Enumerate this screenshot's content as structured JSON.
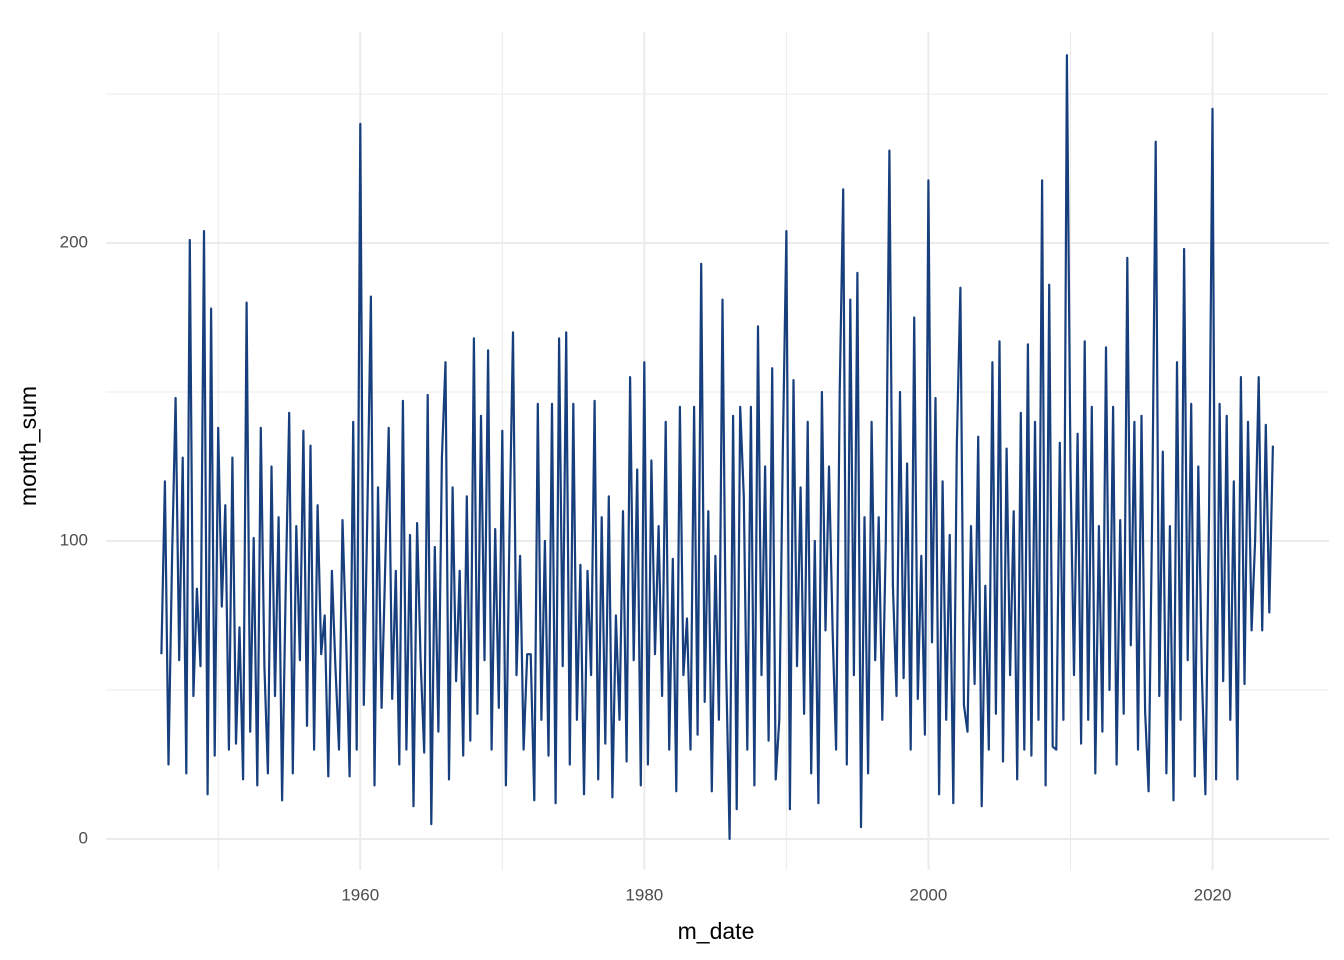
{
  "chart_data": {
    "type": "line",
    "x_label": "m_date",
    "y_label": "month_sum",
    "xlim": [
      1942.1,
      2028.2
    ],
    "xticks": [
      1960,
      1980,
      2000,
      2020
    ],
    "x_minor_grid": [
      1950,
      1970,
      1990,
      2010
    ],
    "ylim": [
      -10.4,
      270.8
    ],
    "yticks": [
      0,
      100,
      200
    ],
    "y_minor_grid": [
      50,
      150,
      250
    ],
    "grid": true,
    "series": [
      {
        "color": "#173e7d",
        "x": [
          1946,
          1946.25,
          1946.5,
          1946.75,
          1947,
          1947.25,
          1947.5,
          1947.75,
          1948,
          1948.25,
          1948.5,
          1948.75,
          1949,
          1949.25,
          1949.5,
          1949.75,
          1950,
          1950.25,
          1950.5,
          1950.75,
          1951,
          1951.25,
          1951.5,
          1951.75,
          1952,
          1952.25,
          1952.5,
          1952.75,
          1953,
          1953.25,
          1953.5,
          1953.75,
          1954,
          1954.25,
          1954.5,
          1954.75,
          1955,
          1955.25,
          1955.5,
          1955.75,
          1956,
          1956.25,
          1956.5,
          1956.75,
          1957,
          1957.25,
          1957.5,
          1957.75,
          1958,
          1958.25,
          1958.5,
          1958.75,
          1959,
          1959.25,
          1959.5,
          1959.75,
          1960,
          1960.25,
          1960.5,
          1960.75,
          1961,
          1961.25,
          1961.5,
          1961.75,
          1962,
          1962.25,
          1962.5,
          1962.75,
          1963,
          1963.25,
          1963.5,
          1963.75,
          1964,
          1964.25,
          1964.5,
          1964.75,
          1965,
          1965.25,
          1965.5,
          1965.75,
          1966,
          1966.25,
          1966.5,
          1966.75,
          1967,
          1967.25,
          1967.5,
          1967.75,
          1968,
          1968.25,
          1968.5,
          1968.75,
          1969,
          1969.25,
          1969.5,
          1969.75,
          1970,
          1970.25,
          1970.5,
          1970.75,
          1971,
          1971.25,
          1971.5,
          1971.75,
          1972,
          1972.25,
          1972.5,
          1972.75,
          1973,
          1973.25,
          1973.5,
          1973.75,
          1974,
          1974.25,
          1974.5,
          1974.75,
          1975,
          1975.25,
          1975.5,
          1975.75,
          1976,
          1976.25,
          1976.5,
          1976.75,
          1977,
          1977.25,
          1977.5,
          1977.75,
          1978,
          1978.25,
          1978.5,
          1978.75,
          1979,
          1979.25,
          1979.5,
          1979.75,
          1980,
          1980.25,
          1980.5,
          1980.75,
          1981,
          1981.25,
          1981.5,
          1981.75,
          1982,
          1982.25,
          1982.5,
          1982.75,
          1983,
          1983.25,
          1983.5,
          1983.75,
          1984,
          1984.25,
          1984.5,
          1984.75,
          1985,
          1985.25,
          1985.5,
          1985.75,
          1986,
          1986.25,
          1986.5,
          1986.75,
          1987,
          1987.25,
          1987.5,
          1987.75,
          1988,
          1988.25,
          1988.5,
          1988.75,
          1989,
          1989.25,
          1989.5,
          1989.75,
          1990,
          1990.25,
          1990.5,
          1990.75,
          1991,
          1991.25,
          1991.5,
          1991.75,
          1992,
          1992.25,
          1992.5,
          1992.75,
          1993,
          1993.25,
          1993.5,
          1993.75,
          1994,
          1994.25,
          1994.5,
          1994.75,
          1995,
          1995.25,
          1995.5,
          1995.75,
          1996,
          1996.25,
          1996.5,
          1996.75,
          1997,
          1997.25,
          1997.5,
          1997.75,
          1998,
          1998.25,
          1998.5,
          1998.75,
          1999,
          1999.25,
          1999.5,
          1999.75,
          2000,
          2000.25,
          2000.5,
          2000.75,
          2001,
          2001.25,
          2001.5,
          2001.75,
          2002,
          2002.25,
          2002.5,
          2002.75,
          2003,
          2003.25,
          2003.5,
          2003.75,
          2004,
          2004.25,
          2004.5,
          2004.75,
          2005,
          2005.25,
          2005.5,
          2005.75,
          2006,
          2006.25,
          2006.5,
          2006.75,
          2007,
          2007.25,
          2007.5,
          2007.75,
          2008,
          2008.25,
          2008.5,
          2008.75,
          2009,
          2009.25,
          2009.5,
          2009.75,
          2010,
          2010.25,
          2010.5,
          2010.75,
          2011,
          2011.25,
          2011.5,
          2011.75,
          2012,
          2012.25,
          2012.5,
          2012.75,
          2013,
          2013.25,
          2013.5,
          2013.75,
          2014,
          2014.25,
          2014.5,
          2014.75,
          2015,
          2015.25,
          2015.5,
          2015.75,
          2016,
          2016.25,
          2016.5,
          2016.75,
          2017,
          2017.25,
          2017.5,
          2017.75,
          2018,
          2018.25,
          2018.5,
          2018.75,
          2019,
          2019.25,
          2019.5,
          2019.75,
          2020,
          2020.25,
          2020.5,
          2020.75,
          2021,
          2021.25,
          2021.5,
          2021.75,
          2022,
          2022.25,
          2022.5,
          2022.75,
          2023,
          2023.25,
          2023.5,
          2023.75,
          2024,
          2024.25
        ],
        "values": [
          62,
          120,
          25,
          95,
          148,
          60,
          128,
          22,
          201,
          48,
          84,
          58,
          204,
          15,
          178,
          28,
          138,
          78,
          112,
          30,
          128,
          32,
          71,
          20,
          180,
          36,
          101,
          18,
          138,
          58,
          22,
          125,
          48,
          108,
          13,
          84,
          143,
          22,
          105,
          60,
          137,
          38,
          132,
          30,
          112,
          62,
          75,
          21,
          90,
          58,
          30,
          107,
          68,
          21,
          140,
          30,
          240,
          45,
          110,
          182,
          18,
          118,
          44,
          90,
          138,
          47,
          90,
          25,
          147,
          30,
          102,
          11,
          106,
          60,
          29,
          149,
          5,
          98,
          36,
          128,
          160,
          20,
          118,
          53,
          90,
          28,
          115,
          33,
          168,
          42,
          142,
          60,
          164,
          30,
          104,
          44,
          137,
          18,
          101,
          170,
          55,
          95,
          30,
          62,
          62,
          13,
          146,
          40,
          100,
          28,
          146,
          12,
          168,
          58,
          170,
          25,
          146,
          40,
          92,
          15,
          90,
          55,
          147,
          20,
          108,
          32,
          115,
          14,
          75,
          40,
          110,
          26,
          155,
          60,
          124,
          18,
          160,
          25,
          127,
          62,
          105,
          48,
          140,
          30,
          94,
          16,
          145,
          55,
          74,
          30,
          145,
          35,
          193,
          46,
          110,
          16,
          95,
          40,
          181,
          60,
          0,
          142,
          10,
          145,
          115,
          30,
          145,
          18,
          172,
          55,
          125,
          33,
          158,
          20,
          40,
          130,
          204,
          10,
          154,
          58,
          118,
          42,
          140,
          22,
          100,
          12,
          150,
          70,
          125,
          70,
          30,
          150,
          218,
          25,
          181,
          55,
          190,
          4,
          108,
          22,
          140,
          60,
          108,
          40,
          100,
          231,
          85,
          48,
          150,
          54,
          126,
          30,
          175,
          47,
          95,
          35,
          221,
          66,
          148,
          15,
          120,
          40,
          102,
          12,
          132,
          185,
          45,
          36,
          105,
          52,
          135,
          11,
          85,
          30,
          160,
          42,
          167,
          26,
          131,
          55,
          110,
          20,
          143,
          30,
          166,
          28,
          140,
          40,
          221,
          18,
          186,
          31,
          30,
          133,
          40,
          263,
          124,
          55,
          136,
          32,
          167,
          40,
          145,
          22,
          105,
          36,
          165,
          50,
          145,
          25,
          107,
          42,
          195,
          65,
          140,
          30,
          142,
          43,
          16,
          110,
          234,
          48,
          130,
          22,
          105,
          13,
          160,
          40,
          198,
          60,
          146,
          21,
          125,
          55,
          15,
          108,
          245,
          20,
          146,
          53,
          142,
          40,
          120,
          20,
          155,
          52,
          140,
          70,
          100,
          155,
          70,
          139,
          76,
          132
        ]
      }
    ]
  }
}
